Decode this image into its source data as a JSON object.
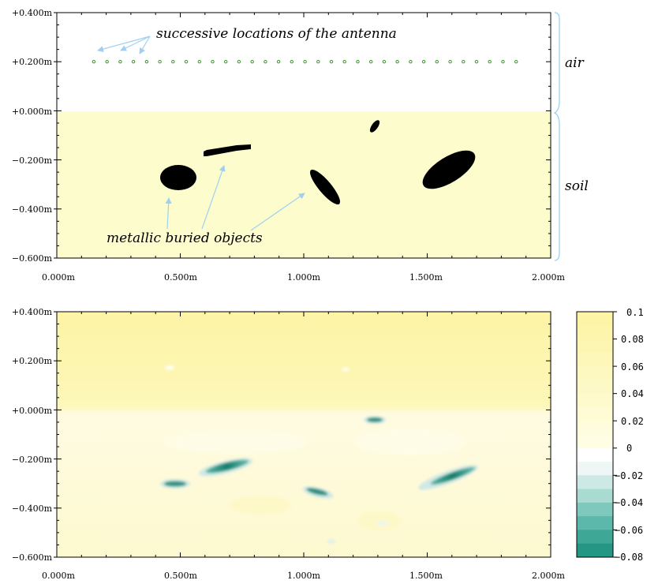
{
  "colors": {
    "soil": "#fdfccc",
    "air": "#ffffff",
    "object": "#000000",
    "antenna": "#3a9a2a",
    "arrow": "#9fd0f2",
    "recon_bg_top": "#fdf5aa",
    "teal_dark": "#10806e",
    "teal_light": "#aee0d8"
  },
  "top_panel": {
    "x_ticks": [
      "0.000m",
      "0.500m",
      "1.000m",
      "1.500m",
      "2.000m"
    ],
    "y_ticks": [
      "+0.400m",
      "+0.200m",
      "+0.000m",
      "−0.200m",
      "−0.400m",
      "−0.600m"
    ],
    "antenna_label": "successive locations of the antenna",
    "objects_label": "metallic buried objects",
    "air_label": "air",
    "soil_label": "soil",
    "antenna_count": 33,
    "antenna_x_range": [
      0.15,
      1.86
    ],
    "antenna_y": 0.2
  },
  "bottom_panel": {
    "x_ticks": [
      "0.000m",
      "0.500m",
      "1.000m",
      "1.500m",
      "2.000m"
    ],
    "y_ticks": [
      "+0.400m",
      "+0.200m",
      "+0.000m",
      "−0.200m",
      "−0.400m",
      "−0.600m"
    ],
    "colorbar_labels": [
      "0.1",
      "0.08",
      "0.06",
      "0.04",
      "0.02",
      "0",
      "−0.02",
      "−0.04",
      "−0.06",
      "−0.08"
    ]
  }
}
